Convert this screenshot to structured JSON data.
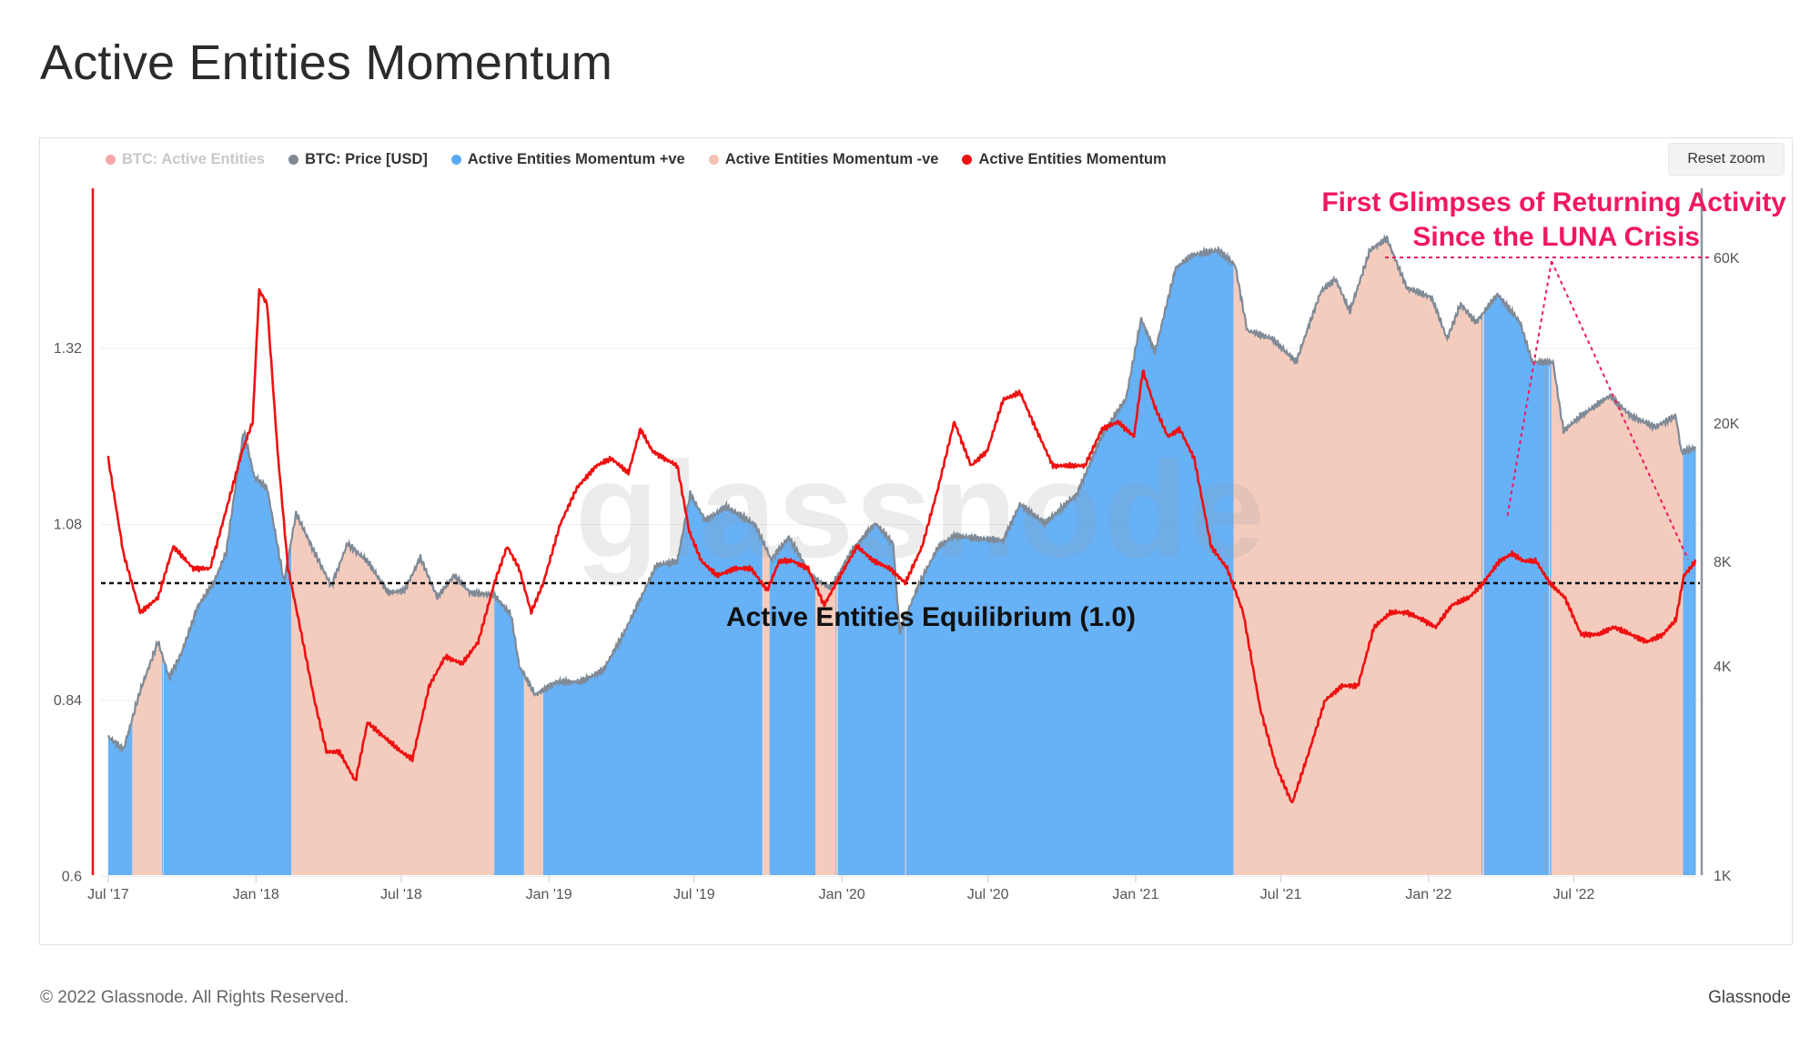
{
  "page": {
    "title": "Active Entities Momentum"
  },
  "legend": [
    {
      "label": "BTC: Active Entities",
      "color": "#f05050",
      "muted": true
    },
    {
      "label": "BTC: Price [USD]",
      "color": "#7f8a96",
      "muted": false
    },
    {
      "label": "Active Entities Momentum +ve",
      "color": "#5aaaf6",
      "muted": false
    },
    {
      "label": "Active Entities Momentum -ve",
      "color": "#f2c3b3",
      "muted": false
    },
    {
      "label": "Active Entities Momentum",
      "color": "#ee1111",
      "muted": false
    }
  ],
  "controls": {
    "reset_zoom": "Reset zoom"
  },
  "watermark": "glassnode",
  "footer": {
    "copyright": "© 2022 Glassnode. All Rights Reserved.",
    "brand": "Glassnode"
  },
  "chart_data": {
    "type": "line",
    "title": "Active Entities Momentum",
    "x_ticks": [
      "Jul '17",
      "Jan '18",
      "Jul '18",
      "Jan '19",
      "Jul '19",
      "Jan '20",
      "Jul '20",
      "Jan '21",
      "Jul '21",
      "Jan '22",
      "Jul '22"
    ],
    "x_range": [
      "2017-07",
      "2022-12"
    ],
    "left_axis": {
      "ticks": [
        "1.32",
        "1.08",
        "0.84",
        "0.6"
      ],
      "range": [
        0.6,
        1.56
      ]
    },
    "right_axis": {
      "ticks": [
        "60K",
        "20K",
        "8K",
        "4K",
        "1K"
      ],
      "scale": "log",
      "range": [
        1000,
        70000
      ]
    },
    "equilibrium": {
      "value": 1.0,
      "label": "Active Entities Equilibrium (1.0)"
    },
    "annotation": {
      "text_line1": "First Glimpses of Returning Activity",
      "text_line2": "Since the LUNA Crisis",
      "color": "#f0185f"
    },
    "colors": {
      "momentum": "#ee1111",
      "price": "#7f8a96",
      "positive_fill": "#5aaaf6",
      "negative_fill": "#f2c3b3"
    },
    "series": [
      {
        "name": "Active Entities Momentum",
        "axis": "left",
        "points": [
          [
            "2017-07-01",
            1.17
          ],
          [
            "2017-07-20",
            1.04
          ],
          [
            "2017-08-10",
            0.96
          ],
          [
            "2017-09-01",
            0.98
          ],
          [
            "2017-09-20",
            1.05
          ],
          [
            "2017-10-15",
            1.02
          ],
          [
            "2017-11-05",
            1.02
          ],
          [
            "2017-11-25",
            1.1
          ],
          [
            "2017-12-15",
            1.18
          ],
          [
            "2017-12-28",
            1.22
          ],
          [
            "2018-01-05",
            1.4
          ],
          [
            "2018-01-15",
            1.38
          ],
          [
            "2018-01-28",
            1.18
          ],
          [
            "2018-02-10",
            1.02
          ],
          [
            "2018-02-25",
            0.94
          ],
          [
            "2018-03-15",
            0.84
          ],
          [
            "2018-03-30",
            0.77
          ],
          [
            "2018-04-15",
            0.77
          ],
          [
            "2018-05-05",
            0.73
          ],
          [
            "2018-05-20",
            0.81
          ],
          [
            "2018-06-10",
            0.79
          ],
          [
            "2018-07-01",
            0.77
          ],
          [
            "2018-07-15",
            0.76
          ],
          [
            "2018-08-05",
            0.86
          ],
          [
            "2018-08-25",
            0.9
          ],
          [
            "2018-09-15",
            0.89
          ],
          [
            "2018-10-05",
            0.92
          ],
          [
            "2018-10-25",
            1.0
          ],
          [
            "2018-11-10",
            1.05
          ],
          [
            "2018-11-25",
            1.02
          ],
          [
            "2018-12-10",
            0.96
          ],
          [
            "2018-12-25",
            1.0
          ],
          [
            "2019-01-15",
            1.08
          ],
          [
            "2019-02-05",
            1.13
          ],
          [
            "2019-03-01",
            1.16
          ],
          [
            "2019-03-20",
            1.17
          ],
          [
            "2019-04-10",
            1.15
          ],
          [
            "2019-04-25",
            1.21
          ],
          [
            "2019-05-10",
            1.18
          ],
          [
            "2019-05-25",
            1.17
          ],
          [
            "2019-06-10",
            1.16
          ],
          [
            "2019-06-25",
            1.07
          ],
          [
            "2019-07-10",
            1.03
          ],
          [
            "2019-07-30",
            1.01
          ],
          [
            "2019-08-20",
            1.02
          ],
          [
            "2019-09-10",
            1.02
          ],
          [
            "2019-09-30",
            0.99
          ],
          [
            "2019-10-15",
            1.03
          ],
          [
            "2019-11-01",
            1.03
          ],
          [
            "2019-11-20",
            1.02
          ],
          [
            "2019-12-10",
            0.97
          ],
          [
            "2019-12-30",
            1.01
          ],
          [
            "2020-01-20",
            1.05
          ],
          [
            "2020-02-10",
            1.03
          ],
          [
            "2020-03-01",
            1.02
          ],
          [
            "2020-03-20",
            1.0
          ],
          [
            "2020-04-10",
            1.05
          ],
          [
            "2020-04-30",
            1.13
          ],
          [
            "2020-05-20",
            1.22
          ],
          [
            "2020-06-10",
            1.16
          ],
          [
            "2020-06-30",
            1.18
          ],
          [
            "2020-07-20",
            1.25
          ],
          [
            "2020-08-10",
            1.26
          ],
          [
            "2020-08-30",
            1.21
          ],
          [
            "2020-09-20",
            1.16
          ],
          [
            "2020-10-10",
            1.16
          ],
          [
            "2020-10-30",
            1.16
          ],
          [
            "2020-11-20",
            1.21
          ],
          [
            "2020-12-10",
            1.22
          ],
          [
            "2020-12-30",
            1.2
          ],
          [
            "2021-01-10",
            1.29
          ],
          [
            "2021-01-25",
            1.24
          ],
          [
            "2021-02-10",
            1.2
          ],
          [
            "2021-02-25",
            1.21
          ],
          [
            "2021-03-15",
            1.17
          ],
          [
            "2021-04-05",
            1.05
          ],
          [
            "2021-04-25",
            1.02
          ],
          [
            "2021-05-15",
            0.96
          ],
          [
            "2021-06-05",
            0.83
          ],
          [
            "2021-06-25",
            0.75
          ],
          [
            "2021-07-15",
            0.7
          ],
          [
            "2021-08-05",
            0.77
          ],
          [
            "2021-08-25",
            0.84
          ],
          [
            "2021-09-15",
            0.86
          ],
          [
            "2021-10-05",
            0.86
          ],
          [
            "2021-10-25",
            0.94
          ],
          [
            "2021-11-15",
            0.96
          ],
          [
            "2021-12-05",
            0.96
          ],
          [
            "2021-12-25",
            0.95
          ],
          [
            "2022-01-10",
            0.94
          ],
          [
            "2022-01-30",
            0.97
          ],
          [
            "2022-02-20",
            0.98
          ],
          [
            "2022-03-10",
            1.0
          ],
          [
            "2022-03-30",
            1.03
          ],
          [
            "2022-04-15",
            1.04
          ],
          [
            "2022-04-30",
            1.03
          ],
          [
            "2022-05-15",
            1.03
          ],
          [
            "2022-06-01",
            1.0
          ],
          [
            "2022-06-20",
            0.98
          ],
          [
            "2022-07-10",
            0.93
          ],
          [
            "2022-08-01",
            0.93
          ],
          [
            "2022-08-20",
            0.94
          ],
          [
            "2022-09-10",
            0.93
          ],
          [
            "2022-09-30",
            0.92
          ],
          [
            "2022-10-20",
            0.93
          ],
          [
            "2022-11-05",
            0.95
          ],
          [
            "2022-11-15",
            1.01
          ],
          [
            "2022-11-30",
            1.03
          ]
        ]
      },
      {
        "name": "BTC: Price [USD]",
        "axis": "right",
        "points": [
          [
            "2017-07-01",
            2500
          ],
          [
            "2017-07-20",
            2300
          ],
          [
            "2017-08-10",
            3400
          ],
          [
            "2017-09-01",
            4700
          ],
          [
            "2017-09-15",
            3700
          ],
          [
            "2017-10-01",
            4400
          ],
          [
            "2017-10-20",
            5900
          ],
          [
            "2017-11-10",
            7000
          ],
          [
            "2017-11-25",
            8500
          ],
          [
            "2017-12-10",
            15000
          ],
          [
            "2017-12-17",
            19000
          ],
          [
            "2017-12-30",
            14000
          ],
          [
            "2018-01-15",
            13000
          ],
          [
            "2018-02-05",
            7000
          ],
          [
            "2018-02-20",
            11000
          ],
          [
            "2018-03-15",
            8500
          ],
          [
            "2018-04-05",
            6800
          ],
          [
            "2018-04-25",
            9000
          ],
          [
            "2018-05-20",
            8000
          ],
          [
            "2018-06-15",
            6500
          ],
          [
            "2018-07-05",
            6600
          ],
          [
            "2018-07-25",
            8200
          ],
          [
            "2018-08-15",
            6300
          ],
          [
            "2018-09-05",
            7300
          ],
          [
            "2018-09-25",
            6500
          ],
          [
            "2018-10-25",
            6400
          ],
          [
            "2018-11-15",
            5600
          ],
          [
            "2018-11-25",
            4000
          ],
          [
            "2018-12-15",
            3300
          ],
          [
            "2019-01-10",
            3600
          ],
          [
            "2019-02-10",
            3600
          ],
          [
            "2019-03-10",
            3900
          ],
          [
            "2019-04-05",
            5000
          ],
          [
            "2019-05-15",
            7800
          ],
          [
            "2019-06-10",
            8000
          ],
          [
            "2019-06-26",
            12500
          ],
          [
            "2019-07-15",
            10500
          ],
          [
            "2019-08-10",
            11500
          ],
          [
            "2019-09-15",
            10200
          ],
          [
            "2019-10-05",
            8100
          ],
          [
            "2019-10-27",
            9400
          ],
          [
            "2019-11-25",
            7200
          ],
          [
            "2019-12-18",
            6700
          ],
          [
            "2020-01-15",
            8700
          ],
          [
            "2020-02-12",
            10300
          ],
          [
            "2020-03-05",
            9000
          ],
          [
            "2020-03-13",
            5000
          ],
          [
            "2020-04-05",
            6800
          ],
          [
            "2020-04-30",
            8800
          ],
          [
            "2020-05-20",
            9500
          ],
          [
            "2020-06-20",
            9300
          ],
          [
            "2020-07-20",
            9200
          ],
          [
            "2020-08-10",
            11700
          ],
          [
            "2020-09-10",
            10300
          ],
          [
            "2020-10-20",
            12500
          ],
          [
            "2020-11-20",
            18500
          ],
          [
            "2020-12-20",
            23500
          ],
          [
            "2021-01-08",
            40000
          ],
          [
            "2021-01-25",
            32000
          ],
          [
            "2021-02-20",
            56000
          ],
          [
            "2021-03-13",
            61000
          ],
          [
            "2021-04-14",
            63000
          ],
          [
            "2021-05-05",
            57000
          ],
          [
            "2021-05-20",
            37000
          ],
          [
            "2021-06-20",
            35000
          ],
          [
            "2021-07-20",
            30000
          ],
          [
            "2021-08-20",
            48000
          ],
          [
            "2021-09-07",
            52000
          ],
          [
            "2021-09-25",
            42000
          ],
          [
            "2021-10-20",
            63000
          ],
          [
            "2021-11-10",
            68000
          ],
          [
            "2021-12-05",
            49000
          ],
          [
            "2022-01-05",
            46000
          ],
          [
            "2022-01-24",
            35000
          ],
          [
            "2022-02-10",
            44000
          ],
          [
            "2022-03-01",
            39000
          ],
          [
            "2022-03-28",
            47000
          ],
          [
            "2022-04-25",
            39000
          ],
          [
            "2022-05-10",
            30000
          ],
          [
            "2022-06-05",
            30000
          ],
          [
            "2022-06-18",
            19000
          ],
          [
            "2022-07-10",
            21000
          ],
          [
            "2022-08-15",
            24000
          ],
          [
            "2022-09-10",
            21000
          ],
          [
            "2022-10-10",
            19500
          ],
          [
            "2022-11-05",
            21000
          ],
          [
            "2022-11-12",
            16500
          ],
          [
            "2022-11-30",
            17000
          ]
        ]
      }
    ]
  }
}
